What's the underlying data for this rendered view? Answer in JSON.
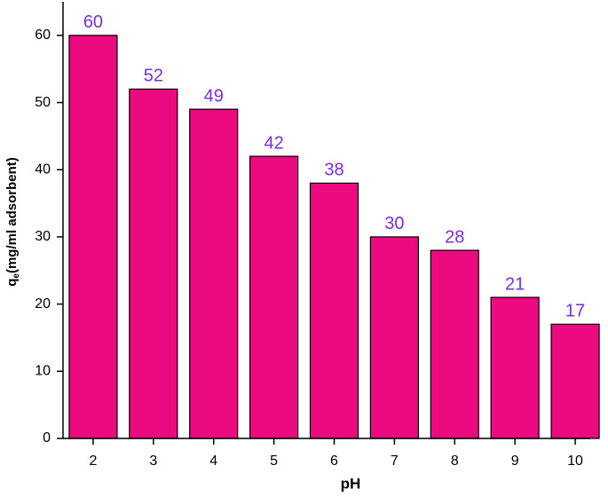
{
  "chart_data": {
    "type": "bar",
    "x_label": "pH",
    "y_label": [
      "q",
      "e",
      "(mg/ml adsorbent)"
    ],
    "categories": [
      "2",
      "3",
      "4",
      "5",
      "6",
      "7",
      "8",
      "9",
      "10"
    ],
    "values": [
      60,
      52,
      49,
      42,
      38,
      30,
      28,
      21,
      17
    ],
    "color": "#ec0a80",
    "label_color": "#7a2ee0",
    "ylim": [
      0,
      65
    ],
    "yticks": [
      0,
      10,
      20,
      30,
      40,
      50,
      60
    ]
  }
}
